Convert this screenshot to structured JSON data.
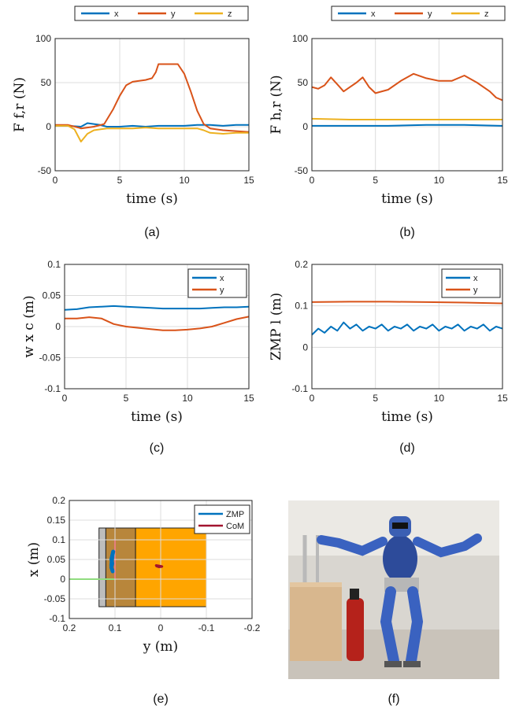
{
  "colors": {
    "x": "#0072BD",
    "y": "#D95319",
    "z": "#EDB120",
    "zmp": "#0072BD",
    "com": "#A2142F",
    "box": "#1f1f1f",
    "grid": "#dcdcdc"
  },
  "chart_data": [
    {
      "id": "a",
      "type": "line",
      "caption": "(a)",
      "xlabel": "time (s)",
      "ylabel": "F f,r (N)",
      "xlim": [
        0,
        15
      ],
      "ylim": [
        -50,
        100
      ],
      "xticks": [
        0,
        5,
        10,
        15
      ],
      "yticks": [
        -50,
        0,
        50,
        100
      ],
      "grid": true,
      "legend": "top-outside",
      "series": [
        {
          "name": "x",
          "key": "x",
          "points": [
            [
              0,
              1
            ],
            [
              1,
              1
            ],
            [
              2,
              0
            ],
            [
              2.5,
              4
            ],
            [
              3,
              3
            ],
            [
              3.5,
              2
            ],
            [
              4,
              0
            ],
            [
              5,
              0
            ],
            [
              6,
              1
            ],
            [
              7,
              0
            ],
            [
              8,
              1
            ],
            [
              9,
              1
            ],
            [
              10,
              1
            ],
            [
              11,
              2
            ],
            [
              12,
              2
            ],
            [
              13,
              1
            ],
            [
              14,
              2
            ],
            [
              15,
              2
            ]
          ]
        },
        {
          "name": "y",
          "key": "y",
          "points": [
            [
              0,
              2
            ],
            [
              1,
              2
            ],
            [
              1.8,
              -1
            ],
            [
              2,
              -2
            ],
            [
              3,
              0
            ],
            [
              3.8,
              3
            ],
            [
              4.5,
              20
            ],
            [
              5,
              35
            ],
            [
              5.5,
              47
            ],
            [
              6,
              51
            ],
            [
              7,
              53
            ],
            [
              7.5,
              55
            ],
            [
              7.8,
              62
            ],
            [
              8,
              71
            ],
            [
              9.5,
              71
            ],
            [
              10,
              60
            ],
            [
              10.5,
              40
            ],
            [
              11,
              18
            ],
            [
              11.5,
              3
            ],
            [
              12,
              -2
            ],
            [
              13,
              -4
            ],
            [
              14,
              -5
            ],
            [
              15,
              -6
            ]
          ]
        },
        {
          "name": "z",
          "key": "z",
          "points": [
            [
              0,
              1
            ],
            [
              1,
              1
            ],
            [
              1.5,
              -3
            ],
            [
              2,
              -17
            ],
            [
              2.5,
              -8
            ],
            [
              3,
              -4
            ],
            [
              4,
              -2
            ],
            [
              5,
              -2
            ],
            [
              6,
              -2
            ],
            [
              7,
              -1
            ],
            [
              8,
              -2
            ],
            [
              9,
              -2
            ],
            [
              10,
              -2
            ],
            [
              11,
              -2
            ],
            [
              11.5,
              -4
            ],
            [
              12,
              -7
            ],
            [
              13,
              -8
            ],
            [
              14,
              -7
            ],
            [
              15,
              -7
            ]
          ]
        }
      ]
    },
    {
      "id": "b",
      "type": "line",
      "caption": "(b)",
      "xlabel": "time (s)",
      "ylabel": "F h,r (N)",
      "xlim": [
        0,
        15
      ],
      "ylim": [
        -50,
        100
      ],
      "xticks": [
        0,
        5,
        10,
        15
      ],
      "yticks": [
        -50,
        0,
        50,
        100
      ],
      "grid": true,
      "legend": "top-outside",
      "series": [
        {
          "name": "x",
          "key": "x",
          "points": [
            [
              0,
              1
            ],
            [
              3,
              1
            ],
            [
              6,
              1
            ],
            [
              9,
              2
            ],
            [
              12,
              2
            ],
            [
              15,
              1
            ]
          ]
        },
        {
          "name": "y",
          "key": "y",
          "points": [
            [
              0,
              45
            ],
            [
              0.5,
              43
            ],
            [
              1,
              47
            ],
            [
              1.5,
              56
            ],
            [
              2,
              48
            ],
            [
              2.5,
              40
            ],
            [
              3,
              45
            ],
            [
              3.5,
              50
            ],
            [
              4,
              56
            ],
            [
              4.5,
              45
            ],
            [
              5,
              38
            ],
            [
              6,
              42
            ],
            [
              7,
              52
            ],
            [
              8,
              60
            ],
            [
              9,
              55
            ],
            [
              10,
              52
            ],
            [
              11,
              52
            ],
            [
              12,
              58
            ],
            [
              13,
              50
            ],
            [
              14,
              40
            ],
            [
              14.5,
              33
            ],
            [
              15,
              30
            ]
          ]
        },
        {
          "name": "z",
          "key": "z",
          "points": [
            [
              0,
              9
            ],
            [
              3,
              8
            ],
            [
              6,
              8
            ],
            [
              9,
              8
            ],
            [
              12,
              8
            ],
            [
              15,
              8
            ]
          ]
        }
      ]
    },
    {
      "id": "c",
      "type": "line",
      "caption": "(c)",
      "xlabel": "time (s)",
      "ylabel": "w x c (m)",
      "xlim": [
        0,
        15
      ],
      "ylim": [
        -0.1,
        0.1
      ],
      "xticks": [
        0,
        5,
        10,
        15
      ],
      "yticks": [
        -0.1,
        -0.05,
        0,
        0.05,
        0.1
      ],
      "grid": true,
      "legend": "top-right",
      "series": [
        {
          "name": "x",
          "key": "x",
          "points": [
            [
              0,
              0.027
            ],
            [
              1,
              0.028
            ],
            [
              2,
              0.031
            ],
            [
              3,
              0.032
            ],
            [
              4,
              0.033
            ],
            [
              5,
              0.032
            ],
            [
              6,
              0.031
            ],
            [
              7,
              0.03
            ],
            [
              8,
              0.029
            ],
            [
              9,
              0.029
            ],
            [
              10,
              0.029
            ],
            [
              11,
              0.029
            ],
            [
              12,
              0.03
            ],
            [
              13,
              0.031
            ],
            [
              14,
              0.031
            ],
            [
              15,
              0.032
            ]
          ]
        },
        {
          "name": "y",
          "key": "y",
          "points": [
            [
              0,
              0.013
            ],
            [
              1,
              0.013
            ],
            [
              2,
              0.015
            ],
            [
              3,
              0.013
            ],
            [
              4,
              0.004
            ],
            [
              5,
              0.0
            ],
            [
              6,
              -0.002
            ],
            [
              7,
              -0.004
            ],
            [
              8,
              -0.006
            ],
            [
              9,
              -0.006
            ],
            [
              10,
              -0.005
            ],
            [
              11,
              -0.003
            ],
            [
              12,
              0.0
            ],
            [
              13,
              0.006
            ],
            [
              14,
              0.012
            ],
            [
              15,
              0.016
            ]
          ]
        }
      ]
    },
    {
      "id": "d",
      "type": "line",
      "caption": "(d)",
      "xlabel": "time (s)",
      "ylabel": "ZMP l (m)",
      "xlim": [
        0,
        15
      ],
      "ylim": [
        -0.1,
        0.2
      ],
      "xticks": [
        0,
        5,
        10,
        15
      ],
      "yticks": [
        -0.1,
        0,
        0.1,
        0.2
      ],
      "grid": true,
      "legend": "top-right",
      "series": [
        {
          "name": "x",
          "key": "x",
          "points": [
            [
              0,
              0.03
            ],
            [
              0.5,
              0.045
            ],
            [
              1,
              0.035
            ],
            [
              1.5,
              0.05
            ],
            [
              2,
              0.04
            ],
            [
              2.5,
              0.06
            ],
            [
              3,
              0.045
            ],
            [
              3.5,
              0.055
            ],
            [
              4,
              0.04
            ],
            [
              4.5,
              0.05
            ],
            [
              5,
              0.045
            ],
            [
              5.5,
              0.055
            ],
            [
              6,
              0.04
            ],
            [
              6.5,
              0.05
            ],
            [
              7,
              0.045
            ],
            [
              7.5,
              0.055
            ],
            [
              8,
              0.04
            ],
            [
              8.5,
              0.05
            ],
            [
              9,
              0.045
            ],
            [
              9.5,
              0.055
            ],
            [
              10,
              0.04
            ],
            [
              10.5,
              0.05
            ],
            [
              11,
              0.045
            ],
            [
              11.5,
              0.055
            ],
            [
              12,
              0.04
            ],
            [
              12.5,
              0.05
            ],
            [
              13,
              0.045
            ],
            [
              13.5,
              0.055
            ],
            [
              14,
              0.04
            ],
            [
              14.5,
              0.05
            ],
            [
              15,
              0.045
            ]
          ]
        },
        {
          "name": "y",
          "key": "y",
          "points": [
            [
              0,
              0.109
            ],
            [
              3,
              0.11
            ],
            [
              6,
              0.11
            ],
            [
              9,
              0.109
            ],
            [
              12,
              0.108
            ],
            [
              15,
              0.106
            ]
          ]
        }
      ]
    },
    {
      "id": "e",
      "type": "scatter",
      "caption": "(e)",
      "xlabel": "y (m)",
      "ylabel": "x (m)",
      "xlim": [
        0.2,
        -0.2
      ],
      "ylim": [
        -0.1,
        0.2
      ],
      "xticks": [
        0.2,
        0.1,
        0,
        -0.1,
        -0.2
      ],
      "yticks": [
        -0.1,
        -0.05,
        0,
        0.05,
        0.1,
        0.15,
        0.2
      ],
      "grid": true,
      "legend": "top-right",
      "series": [
        {
          "name": "ZMP",
          "key": "zmp",
          "points": [
            [
              0.105,
              0.02
            ],
            [
              0.108,
              0.03
            ],
            [
              0.106,
              0.04
            ],
            [
              0.108,
              0.05
            ],
            [
              0.106,
              0.06
            ],
            [
              0.104,
              0.07
            ],
            [
              0.106,
              0.055
            ],
            [
              0.108,
              0.035
            ]
          ]
        },
        {
          "name": "CoM",
          "key": "com",
          "points": [
            [
              0.01,
              0.035
            ],
            [
              0.005,
              0.034
            ],
            [
              0.0,
              0.033
            ],
            [
              -0.003,
              0.032
            ],
            [
              0.004,
              0.031
            ],
            [
              0.009,
              0.033
            ]
          ]
        }
      ]
    }
  ],
  "photo": {
    "caption": "(f)"
  }
}
